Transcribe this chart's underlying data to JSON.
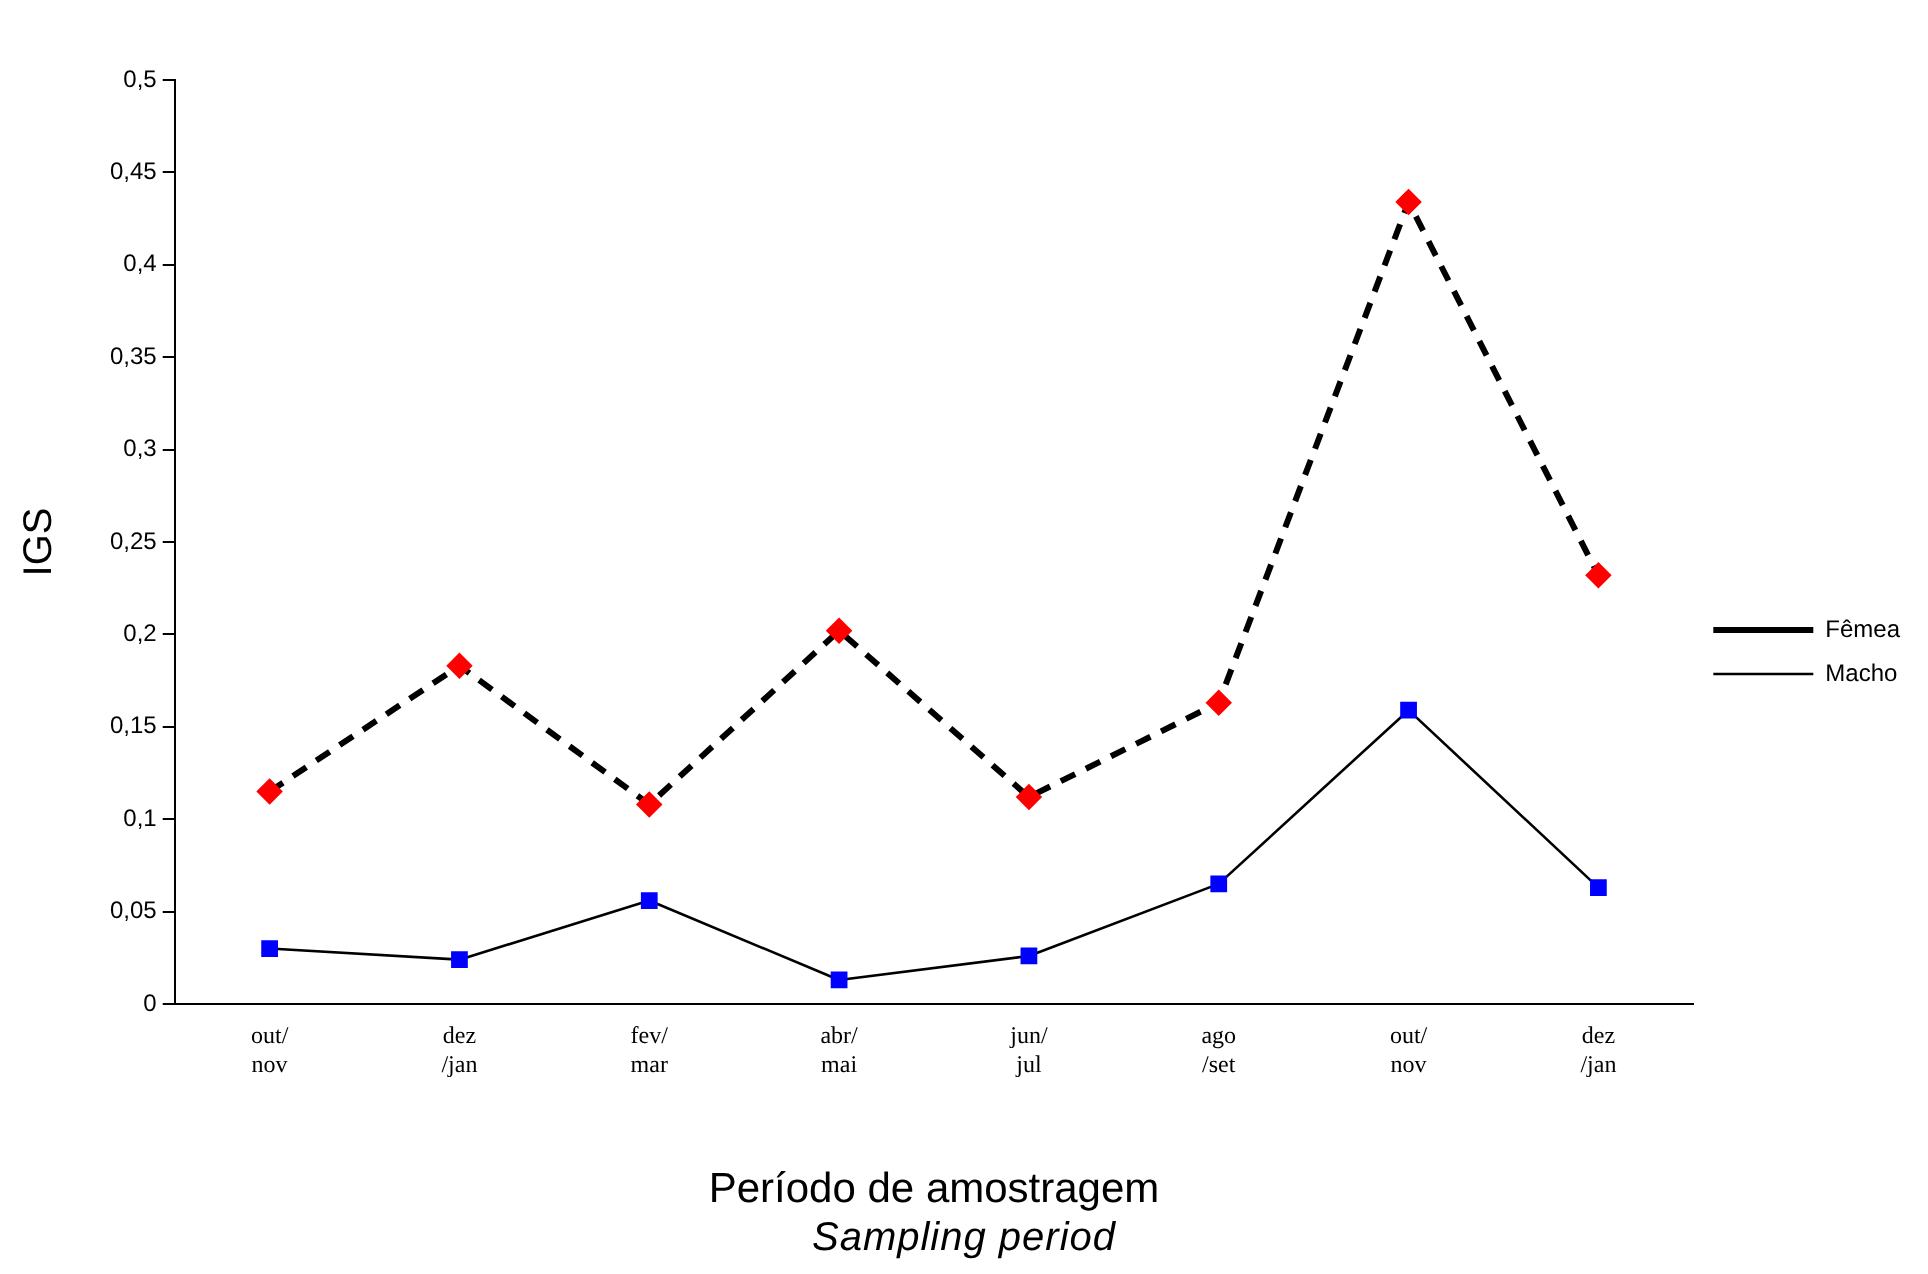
{
  "chart_data": {
    "type": "line",
    "categories": [
      "out/\nnov",
      "dez\n/jan",
      "fev/\nmar",
      "abr/\nmai",
      "jun/\njul",
      "ago\n/set",
      "out/\nnov",
      "dez\n/jan"
    ],
    "series": [
      {
        "name": "Fêmea",
        "color": "#ff0000",
        "marker": "diamond",
        "line_style": "dashed",
        "values": [
          0.115,
          0.183,
          0.108,
          0.202,
          0.112,
          0.163,
          0.434,
          0.232
        ]
      },
      {
        "name": "Macho",
        "color": "#0000ff",
        "marker": "square",
        "line_style": "solid",
        "values": [
          0.03,
          0.024,
          0.056,
          0.013,
          0.026,
          0.065,
          0.159,
          0.063
        ]
      }
    ],
    "ylim": [
      0,
      0.5
    ],
    "yticks": [
      0,
      {
        "value": 0.05,
        "label": "0,05"
      },
      {
        "value": 0.1,
        "label": "0,1"
      },
      {
        "value": 0.15,
        "label": "0,15"
      },
      {
        "value": 0.2,
        "label": "0,2"
      },
      {
        "value": 0.25,
        "label": "0,25"
      },
      {
        "value": 0.3,
        "label": "0,3"
      },
      {
        "value": 0.35,
        "label": "0,35"
      },
      {
        "value": 0.4,
        "label": "0,4"
      },
      {
        "value": 0.45,
        "label": "0,45"
      },
      {
        "value": 0.5,
        "label": "0,5"
      }
    ],
    "ylabel": "IGS",
    "xlabel": "Período de amostragem",
    "annotations": [
      "Sampling period"
    ],
    "grid": false,
    "legend": "right"
  }
}
